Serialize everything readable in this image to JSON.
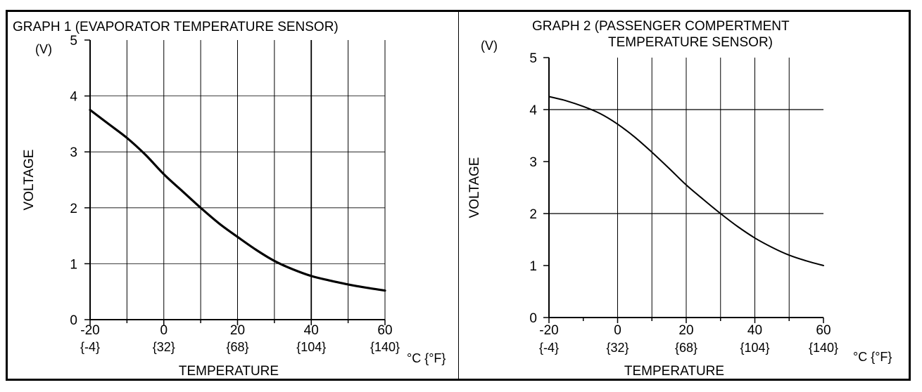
{
  "chart_data": [
    {
      "type": "line",
      "title": "GRAPH 1 (EVAPORATOR TEMPERATURE SENSOR)",
      "title_lines": [
        "GRAPH 1 (EVAPORATOR TEMPERATURE SENSOR)"
      ],
      "xlabel": "TEMPERATURE",
      "ylabel": "VOLTAGE",
      "y_unit": "(V)",
      "x_unit": "°C {°F}",
      "xlim": [
        -20,
        60
      ],
      "ylim": [
        0,
        5
      ],
      "x_ticks": [
        -20,
        0,
        20,
        40,
        60
      ],
      "x_ticks_f": [
        "{-4}",
        "{32}",
        "{68}",
        "{104}",
        "{140}"
      ],
      "y_ticks": [
        0,
        1,
        2,
        3,
        4,
        5
      ],
      "vgrid": [
        -10,
        0,
        10,
        20,
        30,
        40,
        50
      ],
      "hgrid": [
        1,
        2,
        3,
        4
      ],
      "grid": true,
      "series": [
        {
          "x": [
            -20,
            -15,
            -10,
            -5,
            0,
            5,
            10,
            15,
            20,
            25,
            30,
            35,
            40,
            45,
            50,
            55,
            60
          ],
          "values": [
            3.75,
            3.5,
            3.25,
            2.95,
            2.6,
            2.3,
            2.0,
            1.72,
            1.48,
            1.25,
            1.05,
            0.9,
            0.78,
            0.7,
            0.63,
            0.57,
            0.52
          ]
        }
      ]
    },
    {
      "type": "line",
      "title": "GRAPH 2 (PASSENGER COMPERTMENT TEMPERATURE SENSOR)",
      "title_lines": [
        "GRAPH 2 (PASSENGER COMPERTMENT",
        "TEMPERATURE SENSOR)"
      ],
      "xlabel": "TEMPERATURE",
      "ylabel": "VOLTAGE",
      "y_unit": "(V)",
      "x_unit": "°C {°F}",
      "xlim": [
        -20,
        60
      ],
      "ylim": [
        0,
        5
      ],
      "x_ticks": [
        -20,
        0,
        20,
        40,
        60
      ],
      "x_ticks_f": [
        "{-4}",
        "{32}",
        "{68}",
        "{104}",
        "{140}"
      ],
      "y_ticks": [
        0,
        1,
        2,
        3,
        4,
        5
      ],
      "vgrid": [
        0,
        10,
        20,
        30,
        40,
        50
      ],
      "hgrid": [
        2,
        4
      ],
      "grid": true,
      "series": [
        {
          "x": [
            -20,
            -15,
            -10,
            -5,
            0,
            5,
            10,
            15,
            20,
            25,
            30,
            35,
            40,
            45,
            50,
            55,
            60
          ],
          "values": [
            4.25,
            4.17,
            4.06,
            3.92,
            3.72,
            3.47,
            3.18,
            2.87,
            2.55,
            2.27,
            2.0,
            1.75,
            1.53,
            1.35,
            1.2,
            1.09,
            1.0
          ]
        }
      ]
    }
  ]
}
